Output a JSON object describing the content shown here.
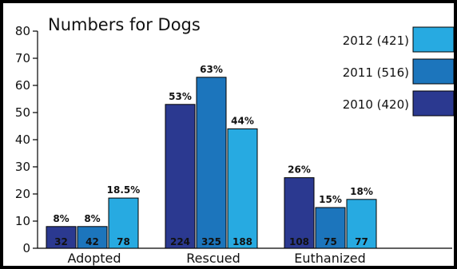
{
  "chart_data": {
    "type": "bar",
    "title": "Numbers for Dogs",
    "categories": [
      "Adopted",
      "Rescued",
      "Euthanized"
    ],
    "ylim": [
      0,
      80
    ],
    "yticks": [
      0,
      10,
      20,
      30,
      40,
      50,
      60,
      70,
      80
    ],
    "grid": false,
    "legend_position": "top-right",
    "series": [
      {
        "name": "2010 (420)",
        "color": "#2b3990",
        "values": [
          8,
          53,
          26
        ],
        "percent_labels": [
          "8%",
          "53%",
          "26%"
        ],
        "count_labels": [
          "32",
          "224",
          "108"
        ]
      },
      {
        "name": "2011 (516)",
        "color": "#1c75bc",
        "values": [
          8,
          63,
          15
        ],
        "percent_labels": [
          "8%",
          "63%",
          "15%"
        ],
        "count_labels": [
          "42",
          "325",
          "75"
        ]
      },
      {
        "name": "2012 (421)",
        "color": "#27aae1",
        "values": [
          18.5,
          44,
          18
        ],
        "percent_labels": [
          "18.5%",
          "44%",
          "18%"
        ],
        "count_labels": [
          "78",
          "188",
          "77"
        ]
      }
    ]
  }
}
